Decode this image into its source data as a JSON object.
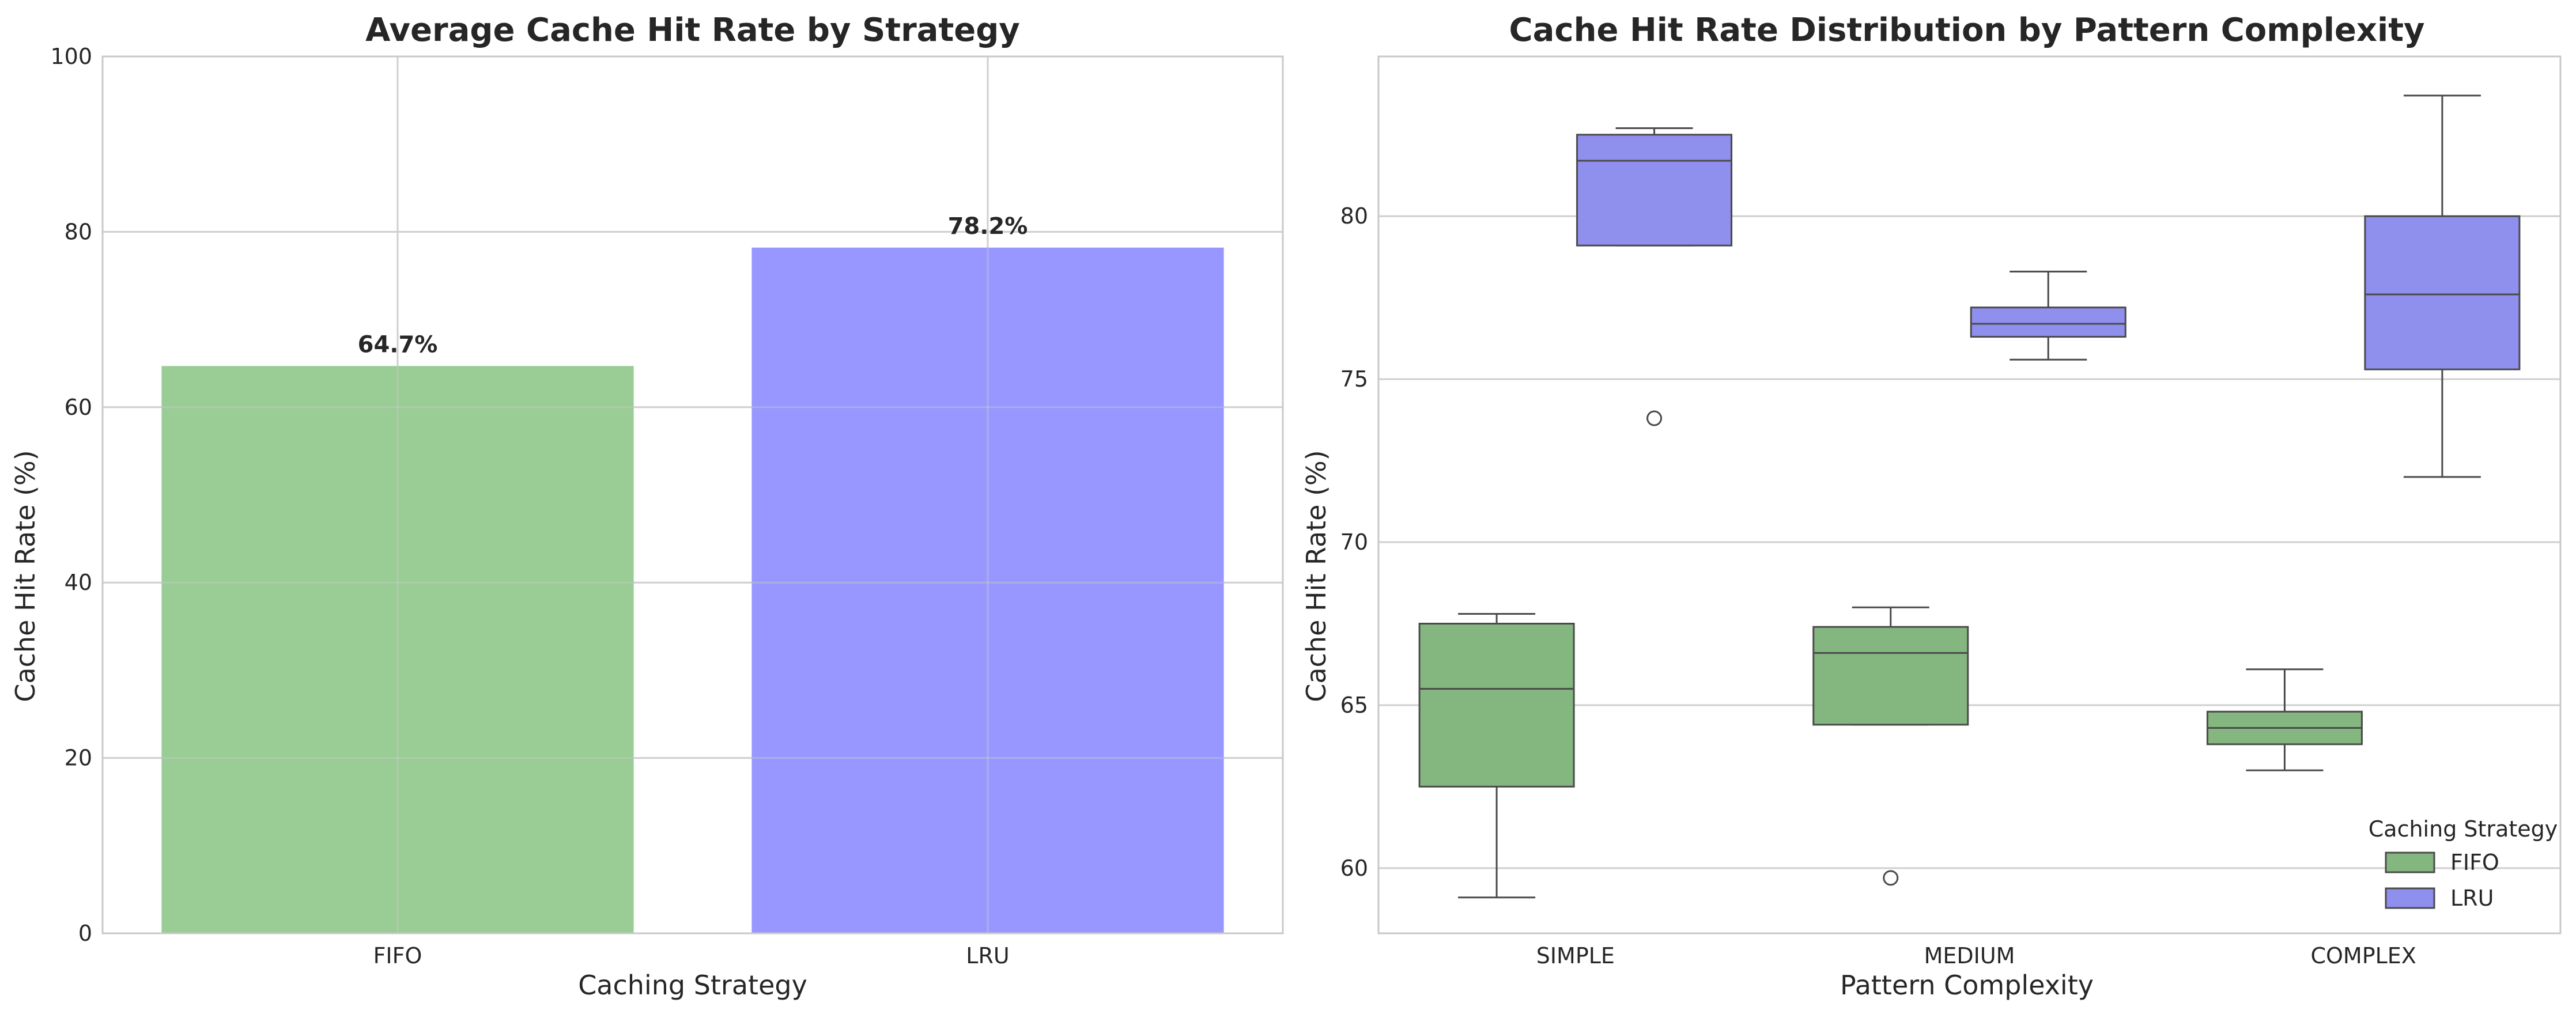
{
  "chart_data": [
    {
      "type": "bar",
      "title": "Average Cache Hit Rate by Strategy",
      "xlabel": "Caching Strategy",
      "ylabel": "Cache Hit Rate (%)",
      "categories": [
        "FIFO",
        "LRU"
      ],
      "values": [
        64.7,
        78.2
      ],
      "value_labels": [
        "64.7%",
        "78.2%"
      ],
      "colors": [
        "#8fc68a",
        "#8c8cff"
      ],
      "ylim": [
        0,
        100
      ],
      "yticks": [
        0,
        20,
        40,
        60,
        80,
        100
      ],
      "grid": true
    },
    {
      "type": "box",
      "title": "Cache Hit Rate Distribution by Pattern Complexity",
      "xlabel": "Pattern Complexity",
      "ylabel": "Cache Hit Rate (%)",
      "categories": [
        "SIMPLE",
        "MEDIUM",
        "COMPLEX"
      ],
      "ylim": [
        58.0,
        84.9
      ],
      "yticks": [
        60,
        65,
        70,
        75,
        80
      ],
      "grid": true,
      "legend": {
        "title": "Caching Strategy",
        "position": "lower-right"
      },
      "series": [
        {
          "name": "FIFO",
          "color": "#84b67f",
          "boxes": [
            {
              "whisker_low": 59.1,
              "q1": 62.5,
              "median": 65.5,
              "q3": 67.5,
              "whisker_high": 67.8,
              "outliers": []
            },
            {
              "whisker_low": 64.4,
              "q1": 64.4,
              "median": 66.6,
              "q3": 67.4,
              "whisker_high": 68.0,
              "outliers": [
                59.7
              ]
            },
            {
              "whisker_low": 63.0,
              "q1": 63.8,
              "median": 64.3,
              "q3": 64.8,
              "whisker_high": 66.1,
              "outliers": []
            }
          ]
        },
        {
          "name": "LRU",
          "color": "#8f8fee",
          "boxes": [
            {
              "whisker_low": 79.1,
              "q1": 79.1,
              "median": 81.7,
              "q3": 82.5,
              "whisker_high": 82.7,
              "outliers": [
                73.8
              ]
            },
            {
              "whisker_low": 75.6,
              "q1": 76.3,
              "median": 76.7,
              "q3": 77.2,
              "whisker_high": 78.3,
              "outliers": []
            },
            {
              "whisker_low": 72.0,
              "q1": 75.3,
              "median": 77.6,
              "q3": 80.0,
              "whisker_high": 83.7,
              "outliers": []
            }
          ]
        }
      ]
    }
  ]
}
